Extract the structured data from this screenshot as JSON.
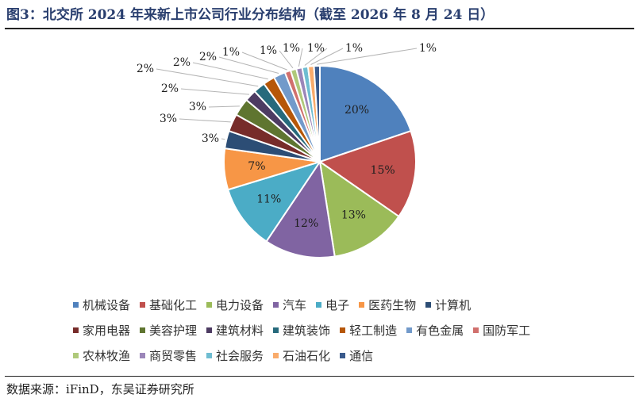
{
  "header": {
    "title": "图3：北交所 2024 年来新上市公司行业分布结构（截至 2026 年 8 月 24 日）"
  },
  "chart_data": {
    "type": "pie",
    "title": "图3：北交所 2024 年来新上市公司行业分布结构（截至 2026 年 8 月 24 日）",
    "legend_position": "bottom",
    "categories": [
      "机械设备",
      "基础化工",
      "电力设备",
      "汽车",
      "电子",
      "医药生物",
      "计算机",
      "家用电器",
      "美容护理",
      "建筑材料",
      "建筑装饰",
      "轻工制造",
      "有色金属",
      "国防军工",
      "农林牧渔",
      "商贸零售",
      "社会服务",
      "石油石化",
      "通信"
    ],
    "values": [
      20,
      15,
      13,
      12,
      11,
      7,
      3,
      3,
      3,
      2,
      2,
      2,
      2,
      1,
      1,
      1,
      1,
      1,
      1
    ],
    "labels": [
      "20%",
      "15%",
      "13%",
      "12%",
      "11%",
      "7%",
      "3%",
      "3%",
      "3%",
      "2%",
      "2%",
      "2%",
      "2%",
      "1%",
      "1%",
      "1%",
      "1%",
      "1%",
      "1%"
    ],
    "colors": [
      "#4f81bd",
      "#c0504d",
      "#9bbb59",
      "#8064a2",
      "#4bacc6",
      "#f79646",
      "#2c4d75",
      "#772c2a",
      "#5f7530",
      "#4d3b62",
      "#276a7c",
      "#b65708",
      "#729aca",
      "#d1706d",
      "#afc97a",
      "#9b86b9",
      "#6fbdd1",
      "#f9ab6b",
      "#3a5a8c"
    ]
  },
  "footer": {
    "source": "数据来源：iFinD，东吴证券研究所"
  }
}
